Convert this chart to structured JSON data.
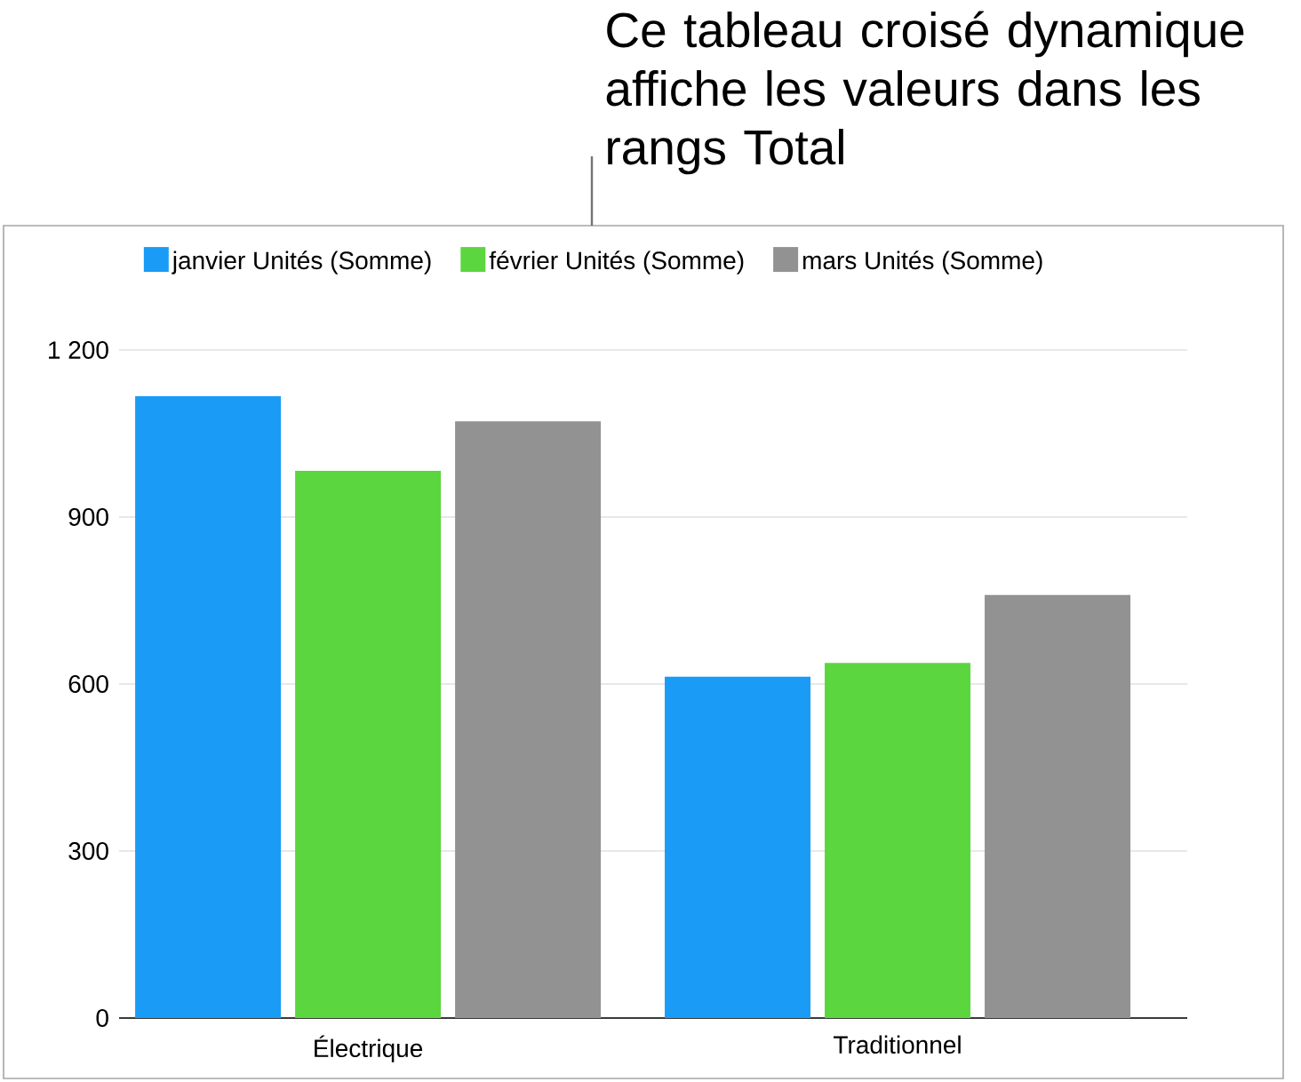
{
  "chart_data": {
    "type": "bar",
    "annotations": [
      "Ce tableau croisé dynamique affiche les valeurs dans les rangs Total"
    ],
    "categories": [
      "Électrique",
      "Traditionnel"
    ],
    "series": [
      {
        "name": "janvier Unités (Somme)",
        "color": "#1a9cf6",
        "values": [
          1117,
          613
        ]
      },
      {
        "name": "février Unités (Somme)",
        "color": "#5bd63f",
        "values": [
          983,
          638
        ]
      },
      {
        "name": "mars Unités (Somme)",
        "color": "#929292",
        "values": [
          1072,
          760
        ]
      }
    ],
    "ylim": [
      0,
      1200
    ],
    "yticks": [
      0,
      300,
      600,
      900,
      {
        "value": 1200,
        "label": "1 200"
      }
    ],
    "grid": "y",
    "legend": "top"
  }
}
